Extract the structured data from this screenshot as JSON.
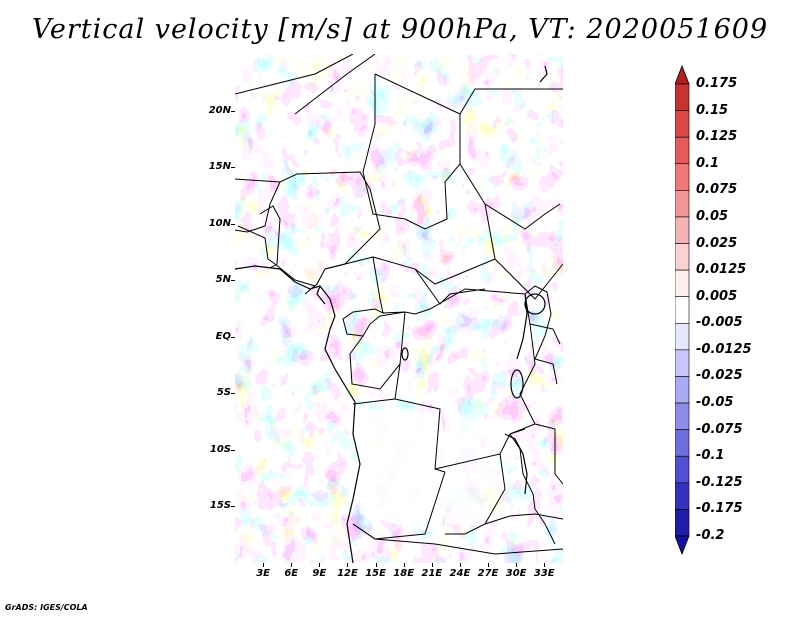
{
  "title": "Vertical velocity [m/s] at 900hPa, VT: 2020051609",
  "credit": "GrADS: IGES/COLA",
  "map": {
    "lat_range": [
      -20,
      25
    ],
    "lon_range": [
      0,
      35
    ],
    "lat_labels": [
      "20N",
      "15N",
      "10N",
      "5N",
      "EQ",
      "5S",
      "10S",
      "15S"
    ],
    "lat_values": [
      20,
      15,
      10,
      5,
      0,
      -5,
      -10,
      -15
    ],
    "lon_labels": [
      "3E",
      "6E",
      "9E",
      "12E",
      "15E",
      "18E",
      "21E",
      "24E",
      "27E",
      "30E",
      "33E"
    ],
    "lon_values": [
      3,
      6,
      9,
      12,
      15,
      18,
      21,
      24,
      27,
      30,
      33
    ],
    "boundary_color": "#000000"
  },
  "colorbar": {
    "labels": [
      "0.175",
      "0.15",
      "0.125",
      "0.1",
      "0.075",
      "0.05",
      "0.025",
      "0.0125",
      "0.005",
      "-0.005",
      "-0.0125",
      "-0.025",
      "-0.05",
      "-0.075",
      "-0.1",
      "-0.125",
      "-0.175",
      "-0.2"
    ],
    "colors": [
      "#b41e1e",
      "#c83232",
      "#dc4646",
      "#e65a5a",
      "#f07878",
      "#f09696",
      "#f5b4b4",
      "#fad2d2",
      "#fff0f0",
      "#ffffff",
      "#e6e6ff",
      "#c8c8ff",
      "#aaaaf5",
      "#8c8ceb",
      "#6e6ee1",
      "#5050d2",
      "#3232be",
      "#1e1eaa",
      "#1414a0"
    ]
  }
}
